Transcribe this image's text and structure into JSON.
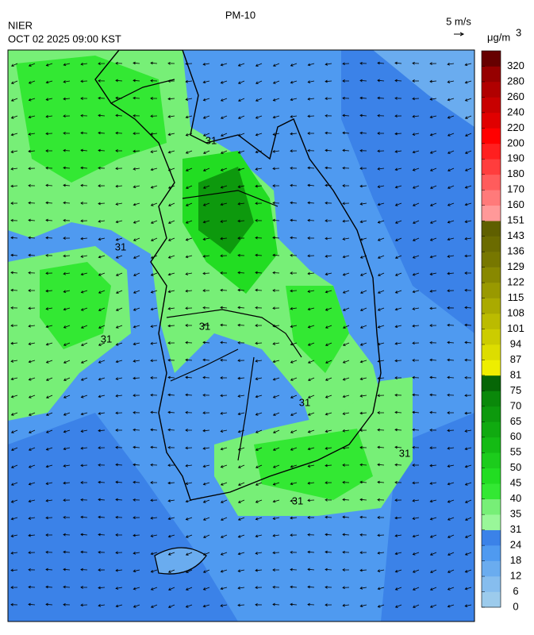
{
  "header": {
    "title": "PM-10",
    "agency": "NIER",
    "datetime": "OCT 02 2025 09:00 KST",
    "wind_scale": "5 m/s"
  },
  "colorbar": {
    "unit": "μg/m",
    "unit_superscript": "3",
    "labels": [
      0,
      6,
      12,
      18,
      24,
      31,
      35,
      40,
      45,
      50,
      55,
      60,
      65,
      70,
      75,
      81,
      87,
      94,
      101,
      108,
      115,
      122,
      129,
      136,
      143,
      151,
      160,
      170,
      180,
      190,
      200,
      220,
      240,
      260,
      280,
      320
    ],
    "colors": [
      "#9ccbec",
      "#86bdee",
      "#6aacef",
      "#4f9af0",
      "#3b82e8",
      "#99f799",
      "#77ef77",
      "#33e833",
      "#22dd22",
      "#1ccc1c",
      "#14bb14",
      "#10aa10",
      "#0d990d",
      "#0a880a",
      "#066606",
      "#eeee00",
      "#dddd00",
      "#cccc00",
      "#bbbb00",
      "#aaaa00",
      "#999900",
      "#888800",
      "#777700",
      "#6b6b00",
      "#5f5f00",
      "#ff9999",
      "#ff7a7a",
      "#ff5c5c",
      "#ff3d3d",
      "#ff1f1f",
      "#ff0000",
      "#e00000",
      "#c80000",
      "#b00000",
      "#960000",
      "#660000"
    ]
  },
  "map": {
    "contour_labels": [
      "31",
      "31",
      "31",
      "31",
      "31",
      "31",
      "31"
    ]
  }
}
